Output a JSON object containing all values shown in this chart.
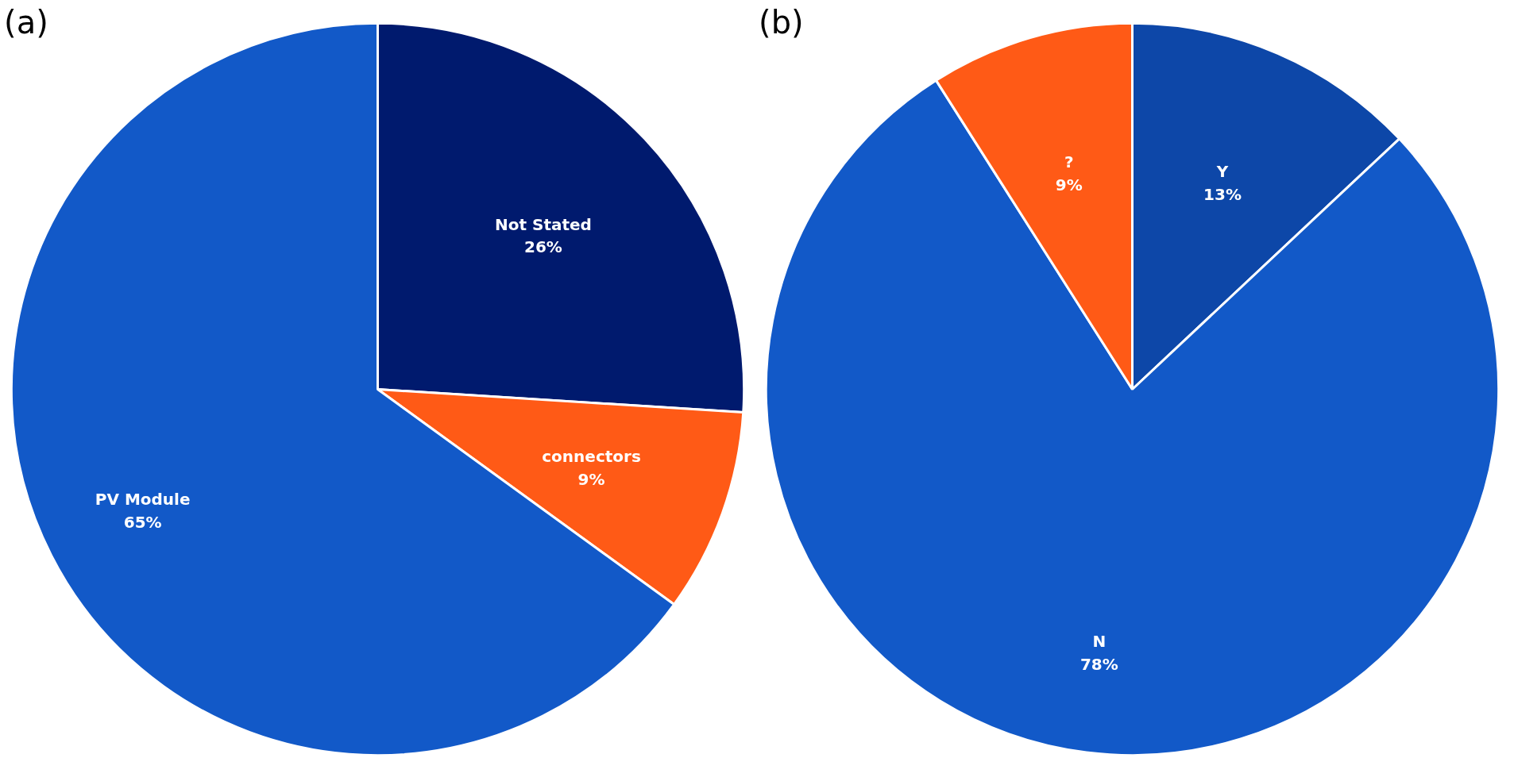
{
  "chart_data": [
    {
      "type": "pie",
      "title": "(a)",
      "categories": [
        "Not Stated",
        "connectors",
        "PV Module"
      ],
      "values": [
        26,
        9,
        65
      ],
      "colors": [
        "#001a6e",
        "#ff5a16",
        "#1259c8"
      ],
      "value_labels": [
        "26%",
        "9%",
        "65%"
      ],
      "legend": false
    },
    {
      "type": "pie",
      "title": "(b)",
      "categories": [
        "Y",
        "N",
        "?"
      ],
      "values": [
        13,
        78,
        9
      ],
      "colors": [
        "#0d47a8",
        "#1259c8",
        "#ff5a16"
      ],
      "value_labels": [
        "13%",
        "78%",
        "9%"
      ],
      "legend": false
    }
  ]
}
